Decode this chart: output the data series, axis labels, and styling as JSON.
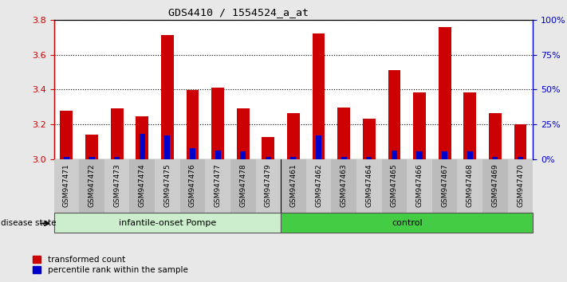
{
  "title": "GDS4410 / 1554524_a_at",
  "samples": [
    "GSM947471",
    "GSM947472",
    "GSM947473",
    "GSM947474",
    "GSM947475",
    "GSM947476",
    "GSM947477",
    "GSM947478",
    "GSM947479",
    "GSM947461",
    "GSM947462",
    "GSM947463",
    "GSM947464",
    "GSM947465",
    "GSM947466",
    "GSM947467",
    "GSM947468",
    "GSM947469",
    "GSM947470"
  ],
  "transformed_count": [
    3.28,
    3.14,
    3.29,
    3.245,
    3.71,
    3.395,
    3.41,
    3.29,
    3.13,
    3.265,
    3.72,
    3.295,
    3.235,
    3.51,
    3.385,
    3.76,
    3.385,
    3.265,
    3.2
  ],
  "percentile_rank": [
    0.02,
    0.02,
    0.02,
    0.18,
    0.17,
    0.08,
    0.065,
    0.055,
    0.02,
    0.02,
    0.17,
    0.02,
    0.02,
    0.065,
    0.055,
    0.055,
    0.055,
    0.02,
    0.02
  ],
  "group_labels": [
    "infantile-onset Pompe",
    "control"
  ],
  "ymin": 3.0,
  "ymax": 3.8,
  "bar_color": "#CC0000",
  "percentile_color": "#0000CC",
  "bg_color": "#E8E8E8",
  "plot_bg": "#FFFFFF",
  "title_color": "#333333",
  "left_axis_color": "#CC0000",
  "right_axis_color": "#0000CC",
  "bar_width": 0.5,
  "group_separator_index": 9,
  "pompe_color": "#CCEECC",
  "control_color": "#44CC44"
}
